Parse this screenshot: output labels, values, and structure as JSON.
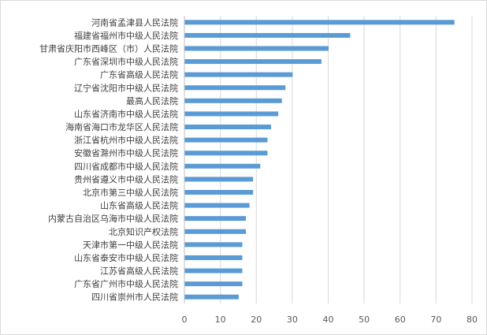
{
  "chart_data": {
    "type": "bar",
    "orientation": "horizontal",
    "title": "",
    "xlabel": "",
    "ylabel": "",
    "xlim": [
      0,
      80
    ],
    "ticks": [
      0,
      10,
      20,
      30,
      40,
      50,
      60,
      70,
      80
    ],
    "grid": true,
    "legend": "none",
    "bar_color": "#5b9bd5",
    "categories": [
      "河南省孟津县人民法院",
      "福建省福州市中级人民法院",
      "甘肃省庆阳市西峰区（市）人民法院",
      "广东省深圳市中级人民法院",
      "广东省高级人民法院",
      "辽宁省沈阳市中级人民法院",
      "最高人民法院",
      "山东省济南市中级人民法院",
      "海南省海口市龙华区人民法院",
      "浙江省杭州市中级人民法院",
      "安徽省滁州市中级人民法院",
      "四川省成都市中级人民法院",
      "贵州省遵义市中级人民法院",
      "北京市第三中级人民法院",
      "山东省高级人民法院",
      "内蒙古自治区乌海市中级人民法院",
      "北京知识产权法院",
      "天津市第一中级人民法院",
      "山东省泰安市中级人民法院",
      "江苏省高级人民法院",
      "广东省广州市中级人民法院",
      "四川省崇州市人民法院"
    ],
    "values": [
      75,
      46,
      40,
      38,
      30,
      28,
      27,
      26,
      24,
      23,
      23,
      21,
      19,
      19,
      18,
      17,
      17,
      16,
      16,
      16,
      16,
      15
    ]
  }
}
